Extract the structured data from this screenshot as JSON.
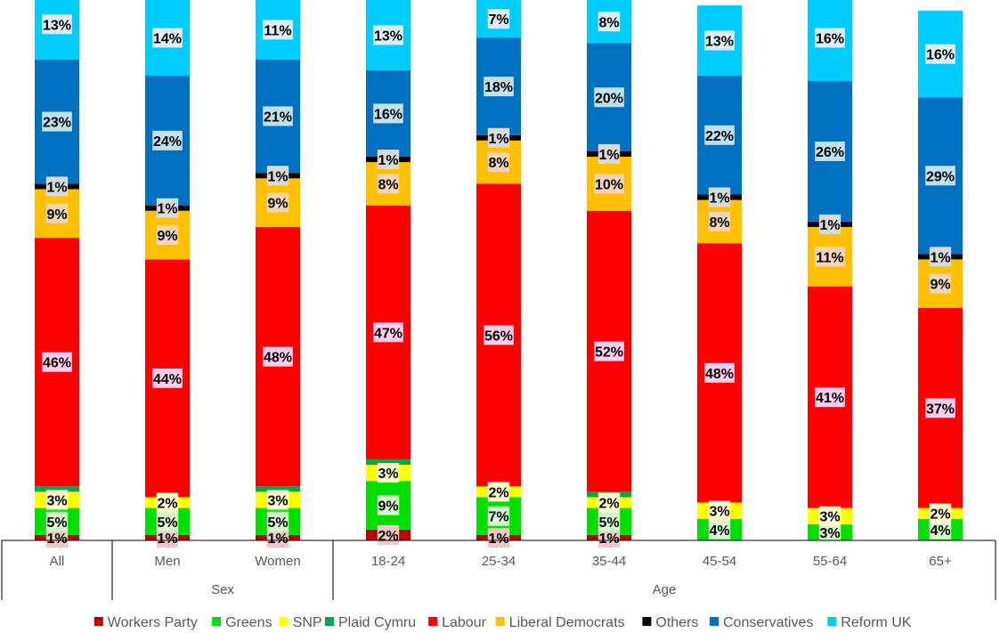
{
  "chart_data": {
    "type": "bar",
    "stacked": true,
    "categories": [
      "All",
      "Men",
      "Women",
      "18-24",
      "25-34",
      "35-44",
      "45-54",
      "55-64",
      "65+"
    ],
    "groups": [
      {
        "label": "",
        "categories": [
          "All"
        ]
      },
      {
        "label": "Sex",
        "categories": [
          "Men",
          "Women"
        ]
      },
      {
        "label": "Age",
        "categories": [
          "18-24",
          "25-34",
          "35-44",
          "45-54",
          "55-64",
          "65+"
        ]
      }
    ],
    "series": [
      {
        "name": "Workers Party",
        "color": "#C00000",
        "values": [
          1,
          1,
          1,
          2,
          1,
          1,
          0,
          0,
          0
        ],
        "labels": [
          "1%",
          "1%",
          "1%",
          "2%",
          "1%",
          "1%",
          "",
          "",
          ""
        ]
      },
      {
        "name": "Greens",
        "color": "#00E000",
        "values": [
          5,
          5,
          5,
          9,
          7,
          5,
          4,
          3,
          4
        ],
        "labels": [
          "5%",
          "5%",
          "5%",
          "9%",
          "7%",
          "5%",
          "4%",
          "3%",
          "4%"
        ]
      },
      {
        "name": "SNP",
        "color": "#FFFF00",
        "values": [
          3,
          2,
          3,
          3,
          2,
          2,
          3,
          3,
          2
        ],
        "labels": [
          "3%",
          "2%",
          "3%",
          "3%",
          "2%",
          "2%",
          "3%",
          "3%",
          "2%"
        ]
      },
      {
        "name": "Plaid Cymru",
        "color": "#00A850",
        "values": [
          1,
          0,
          1,
          1,
          0,
          1,
          0,
          0,
          0
        ],
        "labels": [
          "",
          "",
          "",
          "",
          "",
          "",
          "",
          "",
          ""
        ]
      },
      {
        "name": "Labour",
        "color": "#FF0000",
        "values": [
          46,
          44,
          48,
          47,
          56,
          52,
          48,
          41,
          37
        ],
        "labels": [
          "46%",
          "44%",
          "48%",
          "47%",
          "56%",
          "52%",
          "48%",
          "41%",
          "37%"
        ]
      },
      {
        "name": "Liberal Democrats",
        "color": "#FFC000",
        "values": [
          9,
          9,
          9,
          8,
          8,
          10,
          8,
          11,
          9
        ],
        "labels": [
          "9%",
          "9%",
          "9%",
          "8%",
          "8%",
          "10%",
          "8%",
          "11%",
          "9%"
        ]
      },
      {
        "name": "Others",
        "color": "#000000",
        "values": [
          1,
          1,
          1,
          1,
          1,
          1,
          1,
          1,
          1
        ],
        "labels": [
          "1%",
          "1%",
          "1%",
          "1%",
          "1%",
          "1%",
          "1%",
          "1%",
          "1%"
        ]
      },
      {
        "name": "Conservatives",
        "color": "#0070C0",
        "values": [
          23,
          24,
          21,
          16,
          18,
          20,
          22,
          26,
          29
        ],
        "labels": [
          "23%",
          "24%",
          "21%",
          "16%",
          "18%",
          "20%",
          "22%",
          "26%",
          "29%"
        ]
      },
      {
        "name": "Reform UK",
        "color": "#00CCFF",
        "values": [
          13,
          14,
          11,
          13,
          7,
          8,
          13,
          16,
          16
        ],
        "labels": [
          "13%",
          "14%",
          "11%",
          "13%",
          "7%",
          "8%",
          "13%",
          "16%",
          "16%"
        ]
      }
    ],
    "ylim": [
      0,
      100
    ],
    "legend_position": "bottom",
    "grid": false
  }
}
